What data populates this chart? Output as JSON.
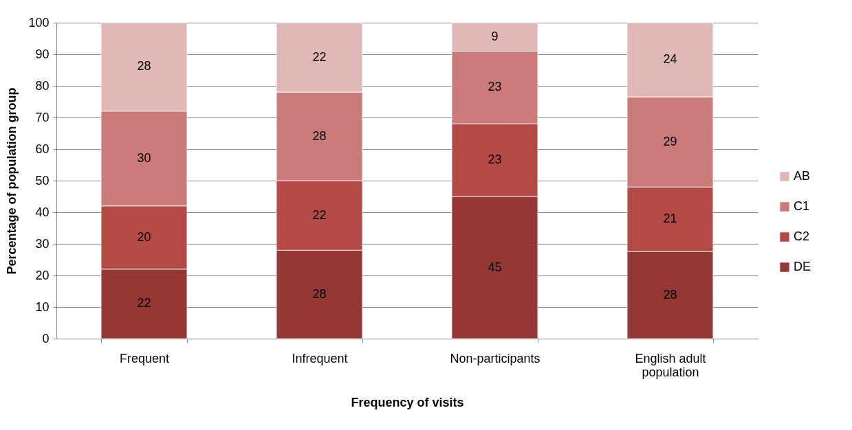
{
  "chart_data": {
    "type": "bar",
    "stacked": true,
    "xlabel": "Frequency of visits",
    "ylabel": "Percentage of population group",
    "categories": [
      "Frequent",
      "Infrequent",
      "Non-participants",
      "English adult population"
    ],
    "series": [
      {
        "name": "DE",
        "color": "#953735",
        "values": [
          22,
          28,
          45,
          27.5
        ],
        "value_labels": [
          "22",
          "28",
          "45",
          "28"
        ]
      },
      {
        "name": "C2",
        "color": "#b34a46",
        "values": [
          20,
          22,
          23,
          20.5
        ],
        "value_labels": [
          "20",
          "22",
          "23",
          "21"
        ]
      },
      {
        "name": "C1",
        "color": "#cb7c7a",
        "values": [
          30,
          28,
          23,
          28.5
        ],
        "value_labels": [
          "30",
          "28",
          "23",
          "29"
        ]
      },
      {
        "name": "AB",
        "color": "#e0b8b7",
        "values": [
          28,
          22,
          9,
          23.5
        ],
        "value_labels": [
          "28",
          "22",
          "9",
          "24"
        ]
      }
    ],
    "ylim": [
      0,
      100
    ],
    "yticks": [
      0,
      10,
      20,
      30,
      40,
      50,
      60,
      70,
      80,
      90,
      100
    ],
    "grid": "y",
    "legend": "right"
  }
}
